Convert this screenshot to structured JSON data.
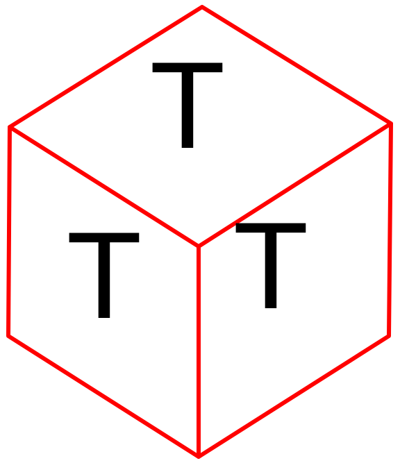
{
  "diagram": {
    "edge_color": "#ff0000",
    "text_color": "#000000",
    "faces": {
      "top": {
        "label": "T"
      },
      "left": {
        "label": "T"
      },
      "right": {
        "label": "T"
      }
    }
  }
}
